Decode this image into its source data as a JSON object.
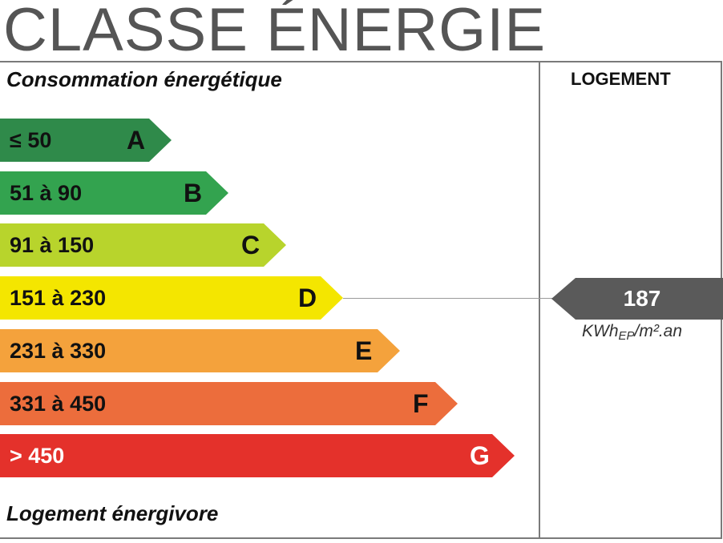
{
  "title": "CLASSE ÉNERGIE",
  "header_left": "Consommation énergétique",
  "header_right": "LOGEMENT",
  "footer_left": "Logement énergivore",
  "chart_data": {
    "type": "bar",
    "bands": [
      {
        "letter": "A",
        "range": "≤ 50",
        "color": "#2f8a4a"
      },
      {
        "letter": "B",
        "range": "51 à 90",
        "color": "#33a34f"
      },
      {
        "letter": "C",
        "range": "91 à 150",
        "color": "#b8d42c"
      },
      {
        "letter": "D",
        "range": "151 à 230",
        "color": "#f4e600"
      },
      {
        "letter": "E",
        "range": "231 à 330",
        "color": "#f4a23c"
      },
      {
        "letter": "F",
        "range": "331 à 450",
        "color": "#ec6d3c"
      },
      {
        "letter": "G",
        "range": "> 450",
        "color": "#e4312b"
      }
    ],
    "value": {
      "number": "187",
      "band": "D",
      "unit_main": "KWh",
      "unit_sub": "EP",
      "unit_rest": "/m².an",
      "color": "#5a5a5a"
    }
  }
}
